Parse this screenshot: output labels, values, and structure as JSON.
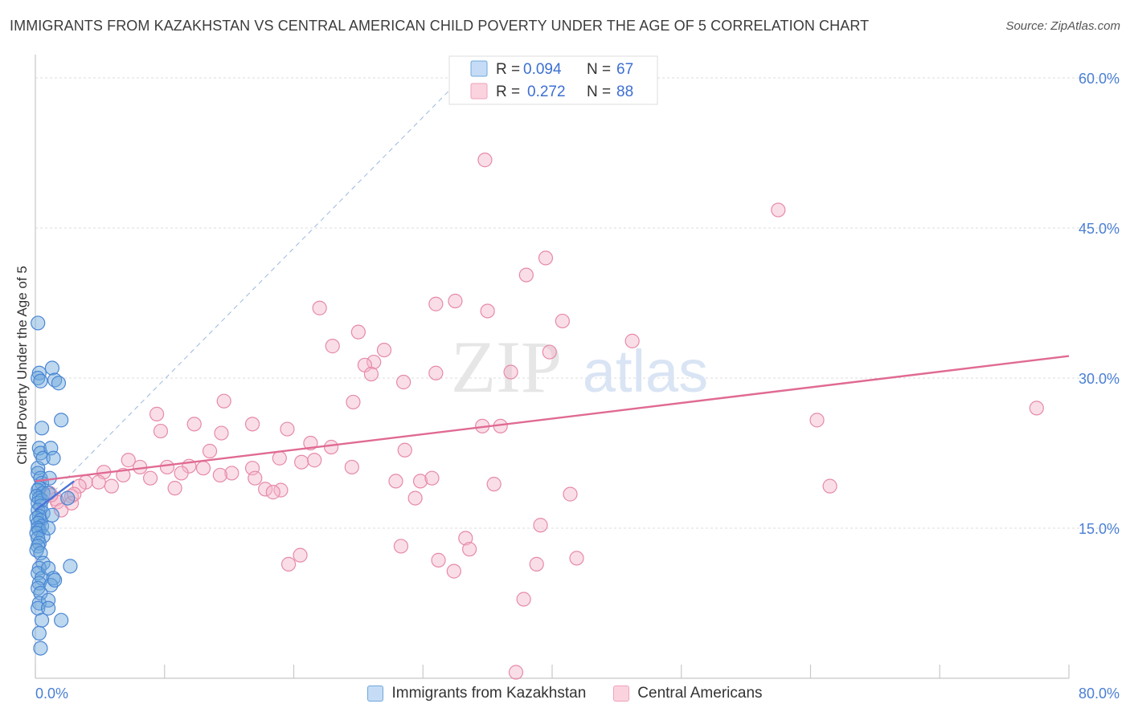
{
  "header": {
    "title": "IMMIGRANTS FROM KAZAKHSTAN VS CENTRAL AMERICAN CHILD POVERTY UNDER THE AGE OF 5 CORRELATION CHART",
    "source": "Source: ZipAtlas.com"
  },
  "watermark": {
    "zip": "ZIP",
    "atlas": "atlas"
  },
  "chart_data": {
    "type": "scatter",
    "title": "IMMIGRANTS FROM KAZAKHSTAN VS CENTRAL AMERICAN CHILD POVERTY UNDER THE AGE OF 5 CORRELATION CHART",
    "xlabel": "",
    "ylabel": "Child Poverty Under the Age of 5",
    "xlim": [
      0,
      80
    ],
    "ylim": [
      0,
      60
    ],
    "x_tick_labels": {
      "min": "0.0%",
      "max": "80.0%"
    },
    "y_ticks": [
      {
        "value": 15,
        "label": "15.0%"
      },
      {
        "value": 30,
        "label": "30.0%"
      },
      {
        "value": 45,
        "label": "45.0%"
      },
      {
        "value": 60,
        "label": "60.0%"
      }
    ],
    "grid": true,
    "legend_position": "top-center",
    "legend": [
      {
        "r_label": "R =",
        "r_value": "0.094",
        "n_label": "N =",
        "n_value": "67"
      },
      {
        "r_label": "R =",
        "r_value": "0.272",
        "n_label": "N =",
        "n_value": "88"
      }
    ],
    "series": [
      {
        "name": "Immigrants from Kazakhstan",
        "color": "#6fa8dc",
        "stroke": "#4a86d4",
        "trend_color": "#4a73d8",
        "trend": {
          "x0": 0,
          "y0": 16.8,
          "x1": 3.0,
          "y1": 19.7
        },
        "extension": {
          "x0": 0,
          "y0": 16.8,
          "x1": 33,
          "y1": 60
        },
        "points": [
          [
            0.2,
            35.5
          ],
          [
            0.3,
            30.5
          ],
          [
            0.2,
            30.0
          ],
          [
            0.4,
            29.7
          ],
          [
            0.5,
            25.0
          ],
          [
            0.3,
            23.0
          ],
          [
            0.4,
            22.5
          ],
          [
            0.2,
            21.0
          ],
          [
            0.6,
            22.0
          ],
          [
            0.2,
            20.5
          ],
          [
            0.4,
            20.0
          ],
          [
            0.5,
            19.5
          ],
          [
            0.3,
            19.0
          ],
          [
            0.2,
            18.8
          ],
          [
            0.6,
            18.5
          ],
          [
            0.1,
            18.2
          ],
          [
            0.3,
            18.0
          ],
          [
            0.2,
            17.5
          ],
          [
            0.5,
            17.8
          ],
          [
            0.4,
            17.2
          ],
          [
            0.2,
            16.8
          ],
          [
            0.6,
            16.5
          ],
          [
            0.3,
            16.2
          ],
          [
            0.1,
            16.0
          ],
          [
            0.4,
            15.8
          ],
          [
            0.2,
            15.5
          ],
          [
            0.5,
            15.2
          ],
          [
            0.2,
            15.0
          ],
          [
            0.3,
            14.8
          ],
          [
            0.1,
            14.5
          ],
          [
            0.6,
            14.2
          ],
          [
            0.2,
            14.0
          ],
          [
            0.3,
            13.5
          ],
          [
            0.2,
            13.2
          ],
          [
            0.1,
            12.8
          ],
          [
            0.4,
            12.5
          ],
          [
            0.6,
            11.5
          ],
          [
            0.3,
            11.0
          ],
          [
            0.2,
            10.5
          ],
          [
            0.5,
            10.0
          ],
          [
            0.3,
            9.5
          ],
          [
            0.2,
            9.0
          ],
          [
            0.4,
            8.5
          ],
          [
            0.3,
            7.5
          ],
          [
            0.2,
            7.0
          ],
          [
            0.5,
            5.8
          ],
          [
            0.3,
            4.5
          ],
          [
            0.4,
            3.0
          ],
          [
            1.3,
            31.0
          ],
          [
            1.5,
            29.8
          ],
          [
            1.8,
            29.5
          ],
          [
            1.2,
            23.0
          ],
          [
            1.4,
            22.0
          ],
          [
            1.1,
            20.0
          ],
          [
            1.0,
            18.5
          ],
          [
            1.3,
            16.3
          ],
          [
            1.0,
            15.0
          ],
          [
            1.0,
            11.0
          ],
          [
            1.4,
            10.0
          ],
          [
            1.2,
            9.3
          ],
          [
            1.0,
            7.8
          ],
          [
            1.0,
            7.0
          ],
          [
            2.0,
            5.8
          ],
          [
            2.7,
            11.2
          ],
          [
            2.0,
            25.8
          ],
          [
            2.5,
            18.0
          ],
          [
            1.5,
            9.8
          ]
        ]
      },
      {
        "name": "Central Americans",
        "color": "#f4b6c9",
        "stroke": "#e68aa8",
        "trend_color": "#e06a93",
        "trend": {
          "x0": 0,
          "y0": 19.7,
          "x1": 80,
          "y1": 32.2
        },
        "points": [
          [
            34.8,
            51.8
          ],
          [
            57.5,
            46.8
          ],
          [
            39.5,
            42.0
          ],
          [
            38.0,
            40.3
          ],
          [
            32.5,
            37.7
          ],
          [
            31.0,
            37.4
          ],
          [
            35.0,
            36.7
          ],
          [
            22.0,
            37.0
          ],
          [
            40.8,
            35.7
          ],
          [
            46.2,
            33.7
          ],
          [
            25.0,
            34.6
          ],
          [
            23.0,
            33.2
          ],
          [
            26.2,
            31.6
          ],
          [
            27.0,
            32.8
          ],
          [
            25.5,
            31.3
          ],
          [
            26.0,
            30.4
          ],
          [
            28.5,
            29.6
          ],
          [
            31.0,
            30.5
          ],
          [
            36.8,
            30.6
          ],
          [
            39.8,
            32.6
          ],
          [
            14.6,
            27.7
          ],
          [
            24.6,
            27.6
          ],
          [
            9.4,
            26.4
          ],
          [
            12.3,
            25.4
          ],
          [
            16.8,
            25.4
          ],
          [
            9.7,
            24.7
          ],
          [
            14.4,
            24.5
          ],
          [
            19.5,
            24.9
          ],
          [
            21.3,
            23.5
          ],
          [
            34.6,
            25.2
          ],
          [
            36.0,
            25.2
          ],
          [
            13.5,
            22.7
          ],
          [
            18.9,
            22.0
          ],
          [
            20.6,
            21.6
          ],
          [
            21.6,
            21.8
          ],
          [
            22.9,
            23.1
          ],
          [
            28.6,
            22.8
          ],
          [
            7.2,
            21.8
          ],
          [
            8.1,
            21.1
          ],
          [
            10.2,
            21.1
          ],
          [
            11.9,
            21.2
          ],
          [
            13.0,
            21.0
          ],
          [
            16.8,
            21.0
          ],
          [
            15.2,
            20.5
          ],
          [
            11.3,
            20.5
          ],
          [
            8.9,
            20.0
          ],
          [
            6.8,
            20.3
          ],
          [
            5.3,
            20.6
          ],
          [
            3.9,
            19.6
          ],
          [
            3.4,
            19.2
          ],
          [
            4.9,
            19.6
          ],
          [
            5.9,
            19.2
          ],
          [
            10.8,
            19.0
          ],
          [
            14.3,
            20.3
          ],
          [
            17.0,
            20.0
          ],
          [
            17.8,
            18.9
          ],
          [
            19.0,
            18.8
          ],
          [
            18.4,
            18.6
          ],
          [
            24.5,
            21.1
          ],
          [
            27.9,
            19.7
          ],
          [
            29.8,
            19.7
          ],
          [
            30.7,
            20.0
          ],
          [
            29.4,
            18.0
          ],
          [
            1.1,
            18.5
          ],
          [
            1.6,
            17.9
          ],
          [
            1.7,
            17.6
          ],
          [
            1.2,
            18.3
          ],
          [
            2.8,
            18.2
          ],
          [
            2.0,
            16.8
          ],
          [
            2.8,
            17.5
          ],
          [
            3.0,
            18.4
          ],
          [
            60.5,
            25.8
          ],
          [
            61.5,
            19.2
          ],
          [
            77.5,
            27.0
          ],
          [
            41.4,
            18.4
          ],
          [
            39.1,
            15.3
          ],
          [
            33.3,
            14.0
          ],
          [
            33.6,
            12.9
          ],
          [
            28.3,
            13.2
          ],
          [
            31.2,
            11.8
          ],
          [
            20.5,
            12.3
          ],
          [
            19.6,
            11.4
          ],
          [
            32.4,
            10.7
          ],
          [
            38.8,
            11.4
          ],
          [
            41.9,
            12.0
          ],
          [
            37.8,
            7.9
          ],
          [
            37.2,
            0.6
          ],
          [
            35.5,
            19.4
          ]
        ]
      }
    ]
  },
  "legend_bottom": [
    {
      "label": "Immigrants from Kazakhstan",
      "fill": "#c6dcf6",
      "stroke": "#6fa8dc"
    },
    {
      "label": "Central Americans",
      "fill": "#fbd3df",
      "stroke": "#eea3bb"
    }
  ],
  "colors": {
    "tick_label_blue": "#4a7fd4",
    "grid": "#dcdcdc",
    "axis": "#c8c8c8",
    "legend_value_blue": "#3c6fd1",
    "watermark": "#e9e9ee"
  }
}
